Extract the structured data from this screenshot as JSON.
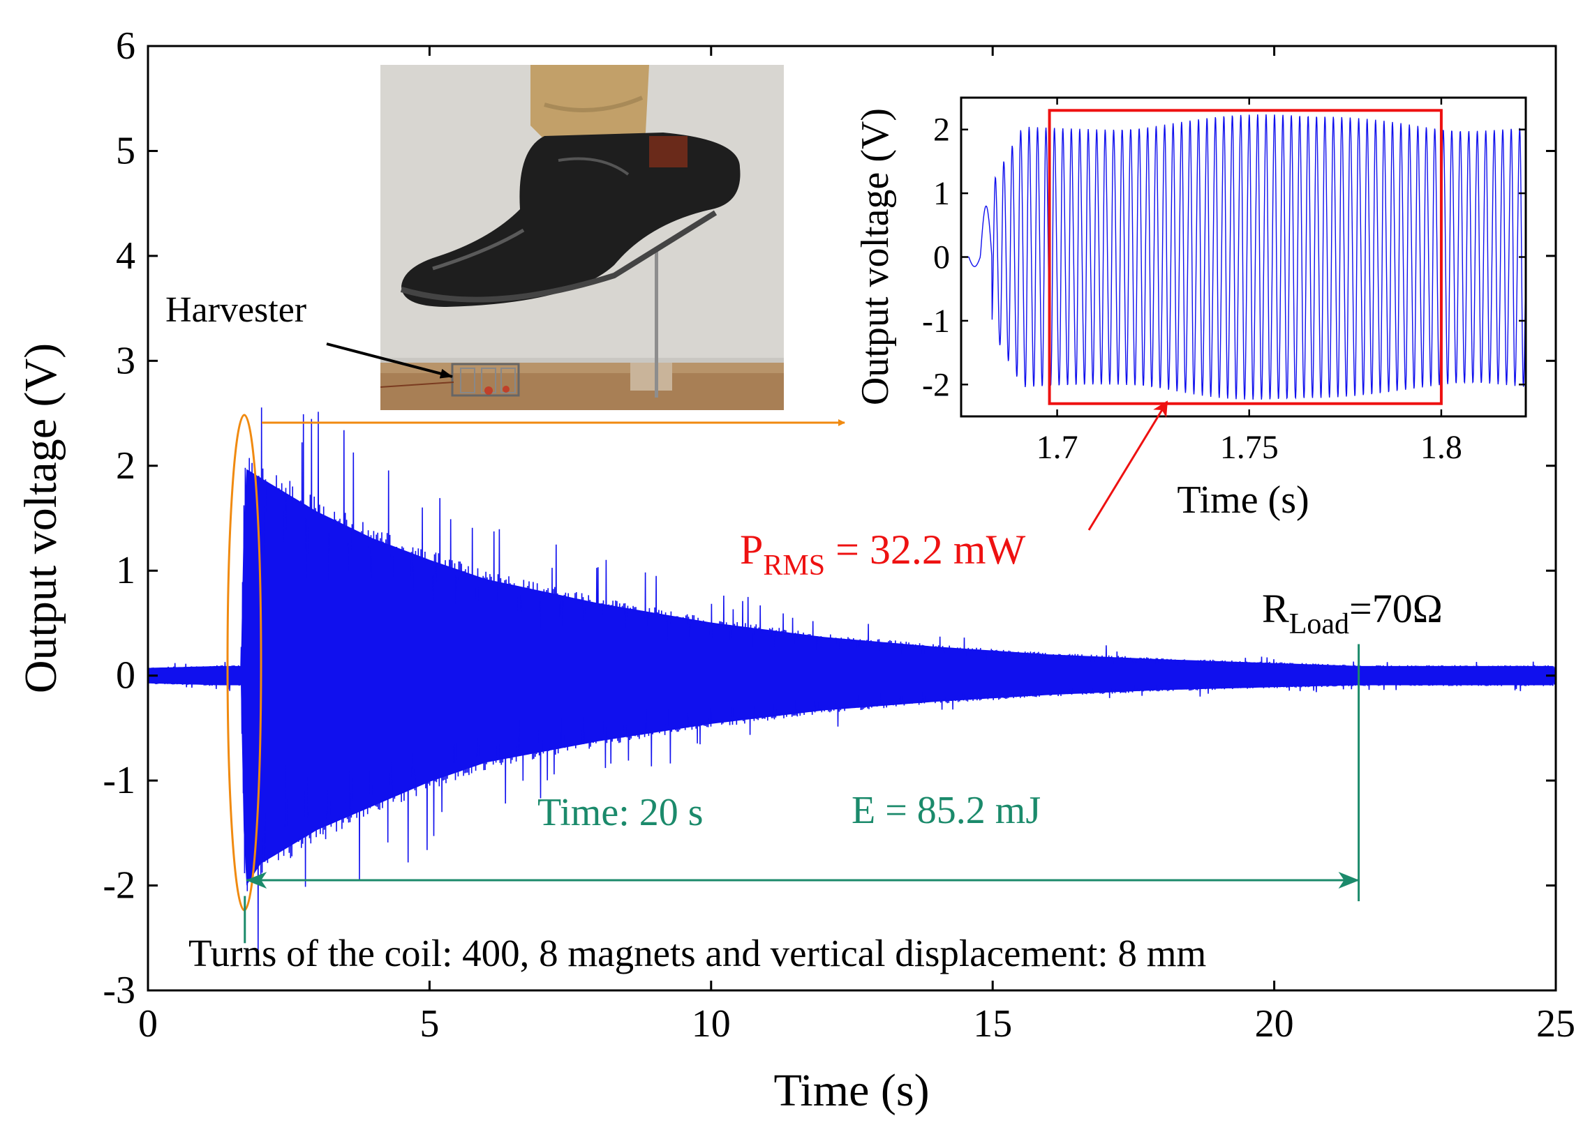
{
  "colors": {
    "signal": "#1010ee",
    "axis": "#000000",
    "energy": "#1b8a6b",
    "power": "#ee1111",
    "highlight": "#f08a10"
  },
  "chart_data": [
    {
      "type": "line",
      "title": "",
      "xlabel": "Time (s)",
      "ylabel": "Output voltage (V)",
      "xlim": [
        0,
        25
      ],
      "ylim": [
        -3,
        6
      ],
      "xticks": [
        0,
        5,
        10,
        15,
        20,
        25
      ],
      "yticks": [
        -3,
        -2,
        -1,
        0,
        1,
        2,
        3,
        4,
        5,
        6
      ],
      "grid": false,
      "series": [
        {
          "name": "Output voltage",
          "description": "decaying oscillation envelope",
          "x": [
            0,
            1.3,
            1.65,
            1.72,
            2,
            3,
            4,
            5,
            6,
            8,
            10,
            12,
            14,
            16,
            18,
            20,
            21.5,
            25
          ],
          "upper": [
            0.08,
            0.1,
            0.1,
            2.15,
            2.05,
            1.7,
            1.42,
            1.2,
            1.0,
            0.75,
            0.55,
            0.4,
            0.3,
            0.22,
            0.17,
            0.13,
            0.1,
            0.1
          ],
          "lower": [
            -0.08,
            -0.1,
            -0.1,
            -2.2,
            -1.95,
            -1.6,
            -1.35,
            -1.1,
            -0.9,
            -0.68,
            -0.5,
            -0.36,
            -0.27,
            -0.2,
            -0.15,
            -0.12,
            -0.1,
            -0.1
          ]
        }
      ],
      "annotations": {
        "harvester": "Harvester",
        "time_label": "Time: 20 s",
        "energy_label": "E = 85.2 mJ",
        "rload_main": "R",
        "rload_sub": "Load",
        "rload_value": "=70Ω",
        "power_main": "P",
        "power_sub": "RMS",
        "power_value": " = 32.2 mW",
        "caption": "Turns of the coil: 400, 8 magnets and vertical displacement: 8 mm",
        "arrow_span_s": [
          1.75,
          21.5
        ]
      }
    },
    {
      "type": "line",
      "title": "",
      "xlabel": "Time (s)",
      "ylabel": "Output voltage (V)",
      "xlim": [
        1.675,
        1.822
      ],
      "ylim": [
        -2.5,
        2.5
      ],
      "xticks": [
        1.7,
        1.75,
        1.8
      ],
      "xtick_labels": [
        "1.7",
        "1.75",
        "1.8"
      ],
      "yticks": [
        -2,
        -1,
        0,
        1,
        2
      ],
      "grid": false,
      "series": [
        {
          "name": "Output voltage (zoom)",
          "description": "steady oscillation at about 2.1 V amplitude",
          "onset_s": 1.679,
          "amplitude_V": 2.1,
          "period_s": 0.0022
        }
      ],
      "highlight_window_s": [
        1.698,
        1.8
      ]
    }
  ]
}
